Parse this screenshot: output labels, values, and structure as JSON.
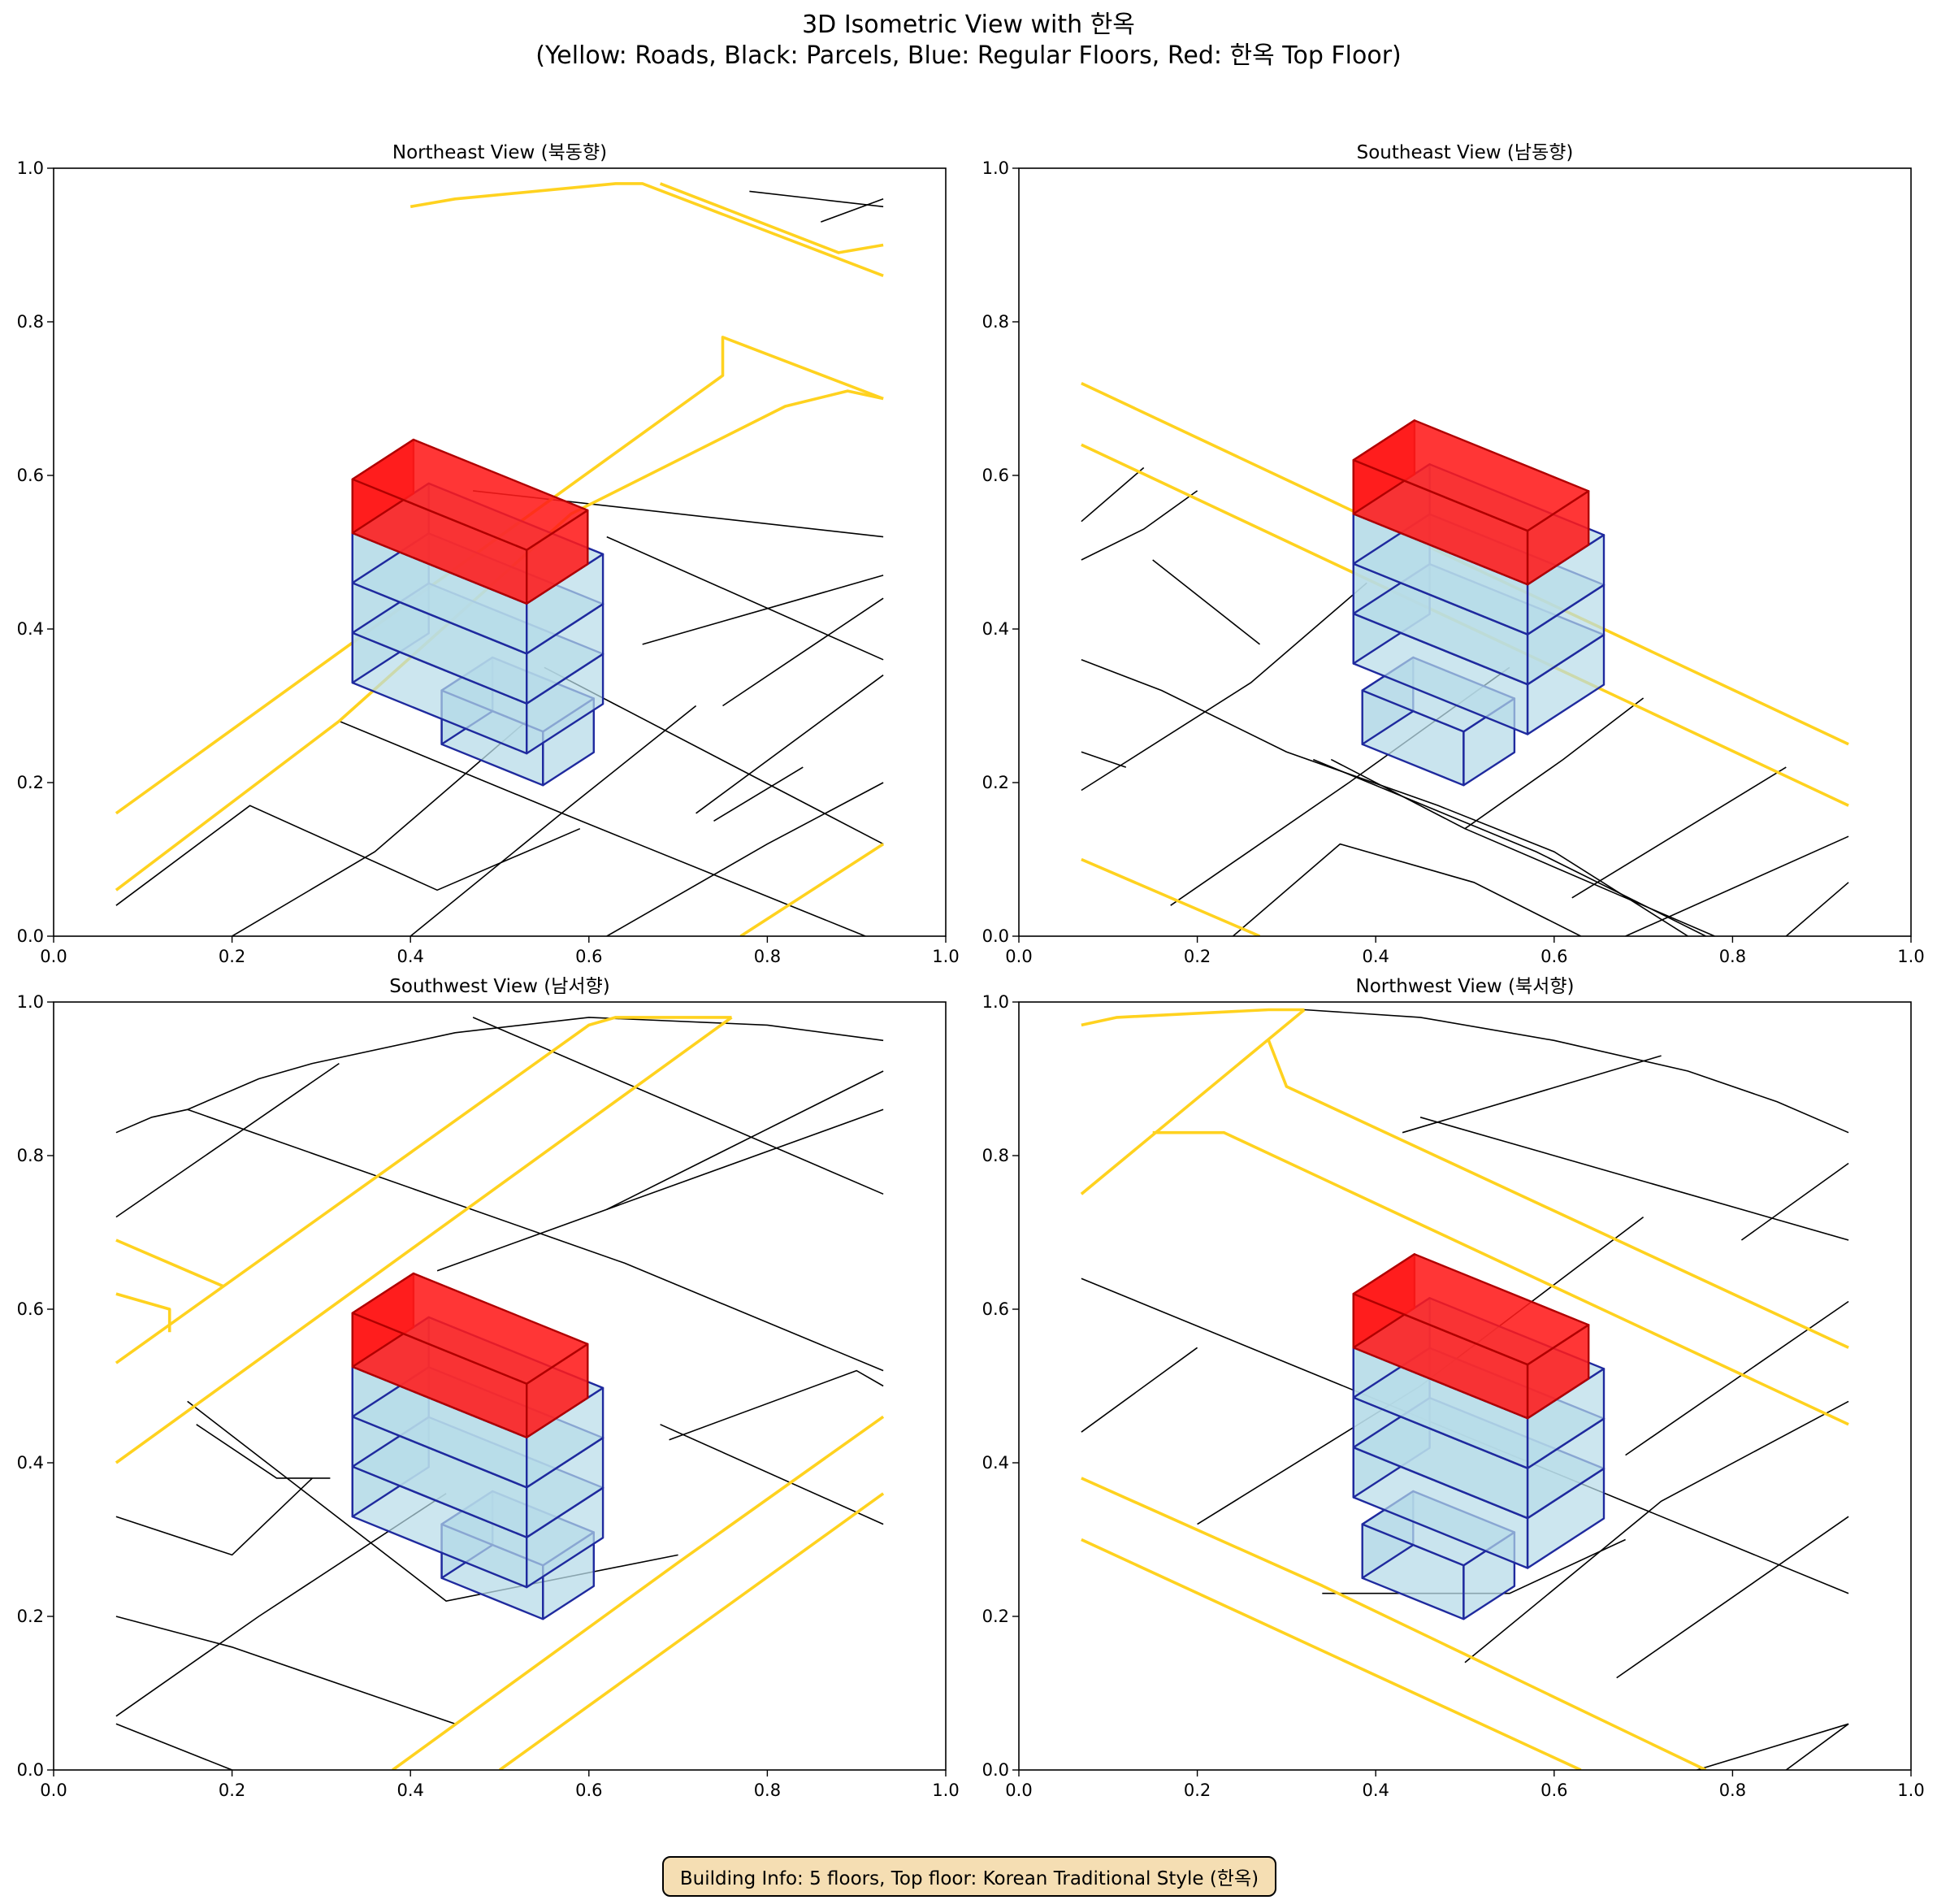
{
  "figure": {
    "title_line1": "3D Isometric View with 한옥",
    "title_line2": "(Yellow: Roads, Black: Parcels, Blue: Regular Floors, Red: 한옥 Top Floor)",
    "info": "Building Info: 5 floors, Top floor: Korean Traditional Style (한옥)"
  },
  "colors": {
    "road": "#ffd21f",
    "road_edge": "#3a3000",
    "parcel": "#000000",
    "floor_fill": "#b7dbe8",
    "floor_edge": "#1f2a9e",
    "hanok_fill": "#ff1a1a",
    "hanok_edge": "#b00000"
  },
  "chart_data": [
    {
      "type": "3d-isometric-view",
      "title": "Northeast View (북동향)",
      "xlim": [
        0,
        1
      ],
      "ylim": [
        0,
        1
      ],
      "x_ticks": [
        "0.0",
        "0.2",
        "0.4",
        "0.6",
        "0.8",
        "1.0"
      ],
      "y_ticks": [
        "0.0",
        "0.2",
        "0.4",
        "0.6",
        "0.8",
        "1.0"
      ],
      "roads": [
        [
          [
            0.07,
            0.16
          ],
          [
            0.75,
            0.73
          ],
          [
            0.75,
            0.78
          ],
          [
            0.93,
            0.7
          ]
        ],
        [
          [
            0.4,
            0.95
          ],
          [
            0.45,
            0.96
          ],
          [
            0.63,
            0.98
          ],
          [
            0.66,
            0.98
          ],
          [
            0.93,
            0.86
          ]
        ],
        [
          [
            0.07,
            0.06
          ],
          [
            0.32,
            0.28
          ],
          [
            0.58,
            0.55
          ],
          [
            0.82,
            0.69
          ],
          [
            0.89,
            0.71
          ],
          [
            0.93,
            0.7
          ]
        ],
        [
          [
            0.77,
            0.0
          ],
          [
            0.93,
            0.12
          ]
        ],
        [
          [
            0.68,
            0.98
          ],
          [
            0.88,
            0.89
          ],
          [
            0.93,
            0.9
          ]
        ]
      ],
      "parcels": [
        [
          [
            0.07,
            0.04
          ],
          [
            0.22,
            0.17
          ],
          [
            0.43,
            0.06
          ],
          [
            0.59,
            0.14
          ]
        ],
        [
          [
            0.2,
            0.0
          ],
          [
            0.36,
            0.11
          ],
          [
            0.53,
            0.28
          ]
        ],
        [
          [
            0.4,
            0.0
          ],
          [
            0.58,
            0.17
          ],
          [
            0.72,
            0.3
          ]
        ],
        [
          [
            0.32,
            0.28
          ],
          [
            0.57,
            0.16
          ],
          [
            0.91,
            0.0
          ]
        ],
        [
          [
            0.62,
            0.0
          ],
          [
            0.8,
            0.12
          ],
          [
            0.93,
            0.2
          ]
        ],
        [
          [
            0.72,
            0.16
          ],
          [
            0.93,
            0.34
          ]
        ],
        [
          [
            0.75,
            0.3
          ],
          [
            0.93,
            0.44
          ]
        ],
        [
          [
            0.55,
            0.35
          ],
          [
            0.93,
            0.12
          ]
        ],
        [
          [
            0.62,
            0.52
          ],
          [
            0.93,
            0.36
          ]
        ],
        [
          [
            0.66,
            0.38
          ],
          [
            0.93,
            0.47
          ]
        ],
        [
          [
            0.74,
            0.15
          ],
          [
            0.84,
            0.22
          ]
        ],
        [
          [
            0.86,
            0.93
          ],
          [
            0.93,
            0.96
          ]
        ],
        [
          [
            0.78,
            0.97
          ],
          [
            0.93,
            0.95
          ]
        ],
        [
          [
            0.47,
            0.58
          ],
          [
            0.93,
            0.52
          ]
        ]
      ],
      "building": {
        "cx": 0.425,
        "cy": 0.405,
        "wing_cx": 0.535,
        "wing_cy": 0.27
      }
    },
    {
      "type": "3d-isometric-view",
      "title": "Southeast View (남동향)",
      "xlim": [
        0,
        1
      ],
      "ylim": [
        0,
        1
      ],
      "x_ticks": [
        "0.0",
        "0.2",
        "0.4",
        "0.6",
        "0.8",
        "1.0"
      ],
      "y_ticks": [
        "0.0",
        "0.2",
        "0.4",
        "0.6",
        "0.8",
        "1.0"
      ],
      "roads": [
        [
          [
            0.07,
            0.72
          ],
          [
            0.93,
            0.25
          ]
        ],
        [
          [
            0.07,
            0.64
          ],
          [
            0.93,
            0.17
          ]
        ],
        [
          [
            0.07,
            0.1
          ],
          [
            0.27,
            0.0
          ]
        ]
      ],
      "parcels": [
        [
          [
            0.07,
            0.54
          ],
          [
            0.14,
            0.61
          ]
        ],
        [
          [
            0.07,
            0.49
          ],
          [
            0.14,
            0.53
          ],
          [
            0.2,
            0.58
          ]
        ],
        [
          [
            0.07,
            0.36
          ],
          [
            0.16,
            0.32
          ],
          [
            0.3,
            0.24
          ],
          [
            0.47,
            0.17
          ],
          [
            0.6,
            0.11
          ],
          [
            0.75,
            0.0
          ]
        ],
        [
          [
            0.07,
            0.24
          ],
          [
            0.12,
            0.22
          ]
        ],
        [
          [
            0.07,
            0.19
          ],
          [
            0.26,
            0.33
          ],
          [
            0.39,
            0.46
          ]
        ],
        [
          [
            0.15,
            0.49
          ],
          [
            0.27,
            0.38
          ]
        ],
        [
          [
            0.17,
            0.04
          ],
          [
            0.37,
            0.2
          ],
          [
            0.55,
            0.35
          ]
        ],
        [
          [
            0.24,
            0.0
          ],
          [
            0.36,
            0.12
          ],
          [
            0.51,
            0.07
          ],
          [
            0.63,
            0.0
          ]
        ],
        [
          [
            0.33,
            0.23
          ],
          [
            0.58,
            0.11
          ],
          [
            0.77,
            0.0
          ]
        ],
        [
          [
            0.35,
            0.23
          ],
          [
            0.5,
            0.14
          ],
          [
            0.61,
            0.23
          ],
          [
            0.7,
            0.31
          ]
        ],
        [
          [
            0.5,
            0.14
          ],
          [
            0.78,
            0.0
          ]
        ],
        [
          [
            0.62,
            0.05
          ],
          [
            0.86,
            0.22
          ]
        ],
        [
          [
            0.68,
            0.0
          ],
          [
            0.93,
            0.13
          ]
        ],
        [
          [
            0.86,
            0.0
          ],
          [
            0.93,
            0.07
          ]
        ]
      ],
      "building": {
        "cx": 0.465,
        "cy": 0.43,
        "wing_cx": 0.485,
        "wing_cy": 0.27
      }
    },
    {
      "type": "3d-isometric-view",
      "title": "Southwest View (남서향)",
      "xlim": [
        0,
        1
      ],
      "ylim": [
        0,
        1
      ],
      "x_ticks": [
        "0.0",
        "0.2",
        "0.4",
        "0.6",
        "0.8",
        "1.0"
      ],
      "y_ticks": [
        "0.0",
        "0.2",
        "0.4",
        "0.6",
        "0.8",
        "1.0"
      ],
      "roads": [
        [
          [
            0.07,
            0.53
          ],
          [
            0.6,
            0.97
          ],
          [
            0.63,
            0.98
          ],
          [
            0.76,
            0.98
          ]
        ],
        [
          [
            0.07,
            0.4
          ],
          [
            0.76,
            0.98
          ]
        ],
        [
          [
            0.07,
            0.69
          ],
          [
            0.19,
            0.63
          ]
        ],
        [
          [
            0.07,
            0.62
          ],
          [
            0.13,
            0.6
          ],
          [
            0.13,
            0.57
          ]
        ],
        [
          [
            0.38,
            0.0
          ],
          [
            0.7,
            0.27
          ],
          [
            0.93,
            0.46
          ]
        ],
        [
          [
            0.5,
            0.0
          ],
          [
            0.93,
            0.36
          ]
        ]
      ],
      "parcels": [
        [
          [
            0.07,
            0.83
          ],
          [
            0.11,
            0.85
          ],
          [
            0.15,
            0.86
          ],
          [
            0.23,
            0.9
          ],
          [
            0.29,
            0.92
          ],
          [
            0.45,
            0.96
          ],
          [
            0.6,
            0.98
          ],
          [
            0.8,
            0.97
          ],
          [
            0.93,
            0.95
          ]
        ],
        [
          [
            0.07,
            0.72
          ],
          [
            0.32,
            0.92
          ]
        ],
        [
          [
            0.15,
            0.86
          ],
          [
            0.64,
            0.66
          ],
          [
            0.93,
            0.52
          ]
        ],
        [
          [
            0.07,
            0.33
          ],
          [
            0.2,
            0.28
          ],
          [
            0.29,
            0.38
          ]
        ],
        [
          [
            0.07,
            0.2
          ],
          [
            0.2,
            0.16
          ],
          [
            0.45,
            0.06
          ]
        ],
        [
          [
            0.07,
            0.06
          ],
          [
            0.2,
            0.0
          ]
        ],
        [
          [
            0.07,
            0.07
          ],
          [
            0.23,
            0.2
          ],
          [
            0.44,
            0.36
          ]
        ],
        [
          [
            0.15,
            0.48
          ],
          [
            0.44,
            0.22
          ],
          [
            0.7,
            0.28
          ]
        ],
        [
          [
            0.16,
            0.45
          ],
          [
            0.25,
            0.38
          ],
          [
            0.31,
            0.38
          ]
        ],
        [
          [
            0.43,
            0.65
          ],
          [
            0.62,
            0.73
          ],
          [
            0.93,
            0.86
          ]
        ],
        [
          [
            0.47,
            0.98
          ],
          [
            0.93,
            0.75
          ]
        ],
        [
          [
            0.62,
            0.73
          ],
          [
            0.93,
            0.91
          ]
        ],
        [
          [
            0.68,
            0.45
          ],
          [
            0.93,
            0.32
          ]
        ],
        [
          [
            0.69,
            0.43
          ],
          [
            0.9,
            0.52
          ],
          [
            0.93,
            0.5
          ]
        ]
      ],
      "building": {
        "cx": 0.425,
        "cy": 0.405,
        "wing_cx": 0.535,
        "wing_cy": 0.27
      }
    },
    {
      "type": "3d-isometric-view",
      "title": "Northwest View (북서향)",
      "xlim": [
        0,
        1
      ],
      "ylim": [
        0,
        1
      ],
      "x_ticks": [
        "0.0",
        "0.2",
        "0.4",
        "0.6",
        "0.8",
        "1.0"
      ],
      "y_ticks": [
        "0.0",
        "0.2",
        "0.4",
        "0.6",
        "0.8",
        "1.0"
      ],
      "roads": [
        [
          [
            0.07,
            0.97
          ],
          [
            0.11,
            0.98
          ],
          [
            0.28,
            0.99
          ],
          [
            0.32,
            0.99
          ]
        ],
        [
          [
            0.07,
            0.75
          ],
          [
            0.32,
            0.99
          ]
        ],
        [
          [
            0.15,
            0.83
          ],
          [
            0.23,
            0.83
          ],
          [
            0.93,
            0.45
          ]
        ],
        [
          [
            0.28,
            0.95
          ],
          [
            0.3,
            0.89
          ],
          [
            0.93,
            0.55
          ]
        ],
        [
          [
            0.07,
            0.38
          ],
          [
            0.34,
            0.24
          ],
          [
            0.77,
            0.0
          ]
        ],
        [
          [
            0.07,
            0.3
          ],
          [
            0.63,
            0.0
          ]
        ]
      ],
      "parcels": [
        [
          [
            0.32,
            0.99
          ],
          [
            0.45,
            0.98
          ],
          [
            0.6,
            0.95
          ],
          [
            0.75,
            0.91
          ],
          [
            0.85,
            0.87
          ],
          [
            0.93,
            0.83
          ]
        ],
        [
          [
            0.43,
            0.83
          ],
          [
            0.72,
            0.93
          ]
        ],
        [
          [
            0.45,
            0.85
          ],
          [
            0.93,
            0.69
          ]
        ],
        [
          [
            0.07,
            0.64
          ],
          [
            0.93,
            0.23
          ]
        ],
        [
          [
            0.07,
            0.44
          ],
          [
            0.2,
            0.55
          ]
        ],
        [
          [
            0.2,
            0.32
          ],
          [
            0.45,
            0.5
          ],
          [
            0.7,
            0.72
          ]
        ],
        [
          [
            0.34,
            0.23
          ],
          [
            0.55,
            0.23
          ],
          [
            0.68,
            0.3
          ]
        ],
        [
          [
            0.5,
            0.14
          ],
          [
            0.72,
            0.35
          ],
          [
            0.93,
            0.48
          ]
        ],
        [
          [
            0.67,
            0.12
          ],
          [
            0.93,
            0.33
          ]
        ],
        [
          [
            0.76,
            0.0
          ],
          [
            0.93,
            0.06
          ]
        ],
        [
          [
            0.86,
            0.0
          ],
          [
            0.93,
            0.06
          ]
        ],
        [
          [
            0.68,
            0.41
          ],
          [
            0.93,
            0.61
          ]
        ],
        [
          [
            0.81,
            0.69
          ],
          [
            0.93,
            0.79
          ]
        ]
      ],
      "building": {
        "cx": 0.465,
        "cy": 0.43,
        "wing_cx": 0.485,
        "wing_cy": 0.27
      }
    }
  ]
}
